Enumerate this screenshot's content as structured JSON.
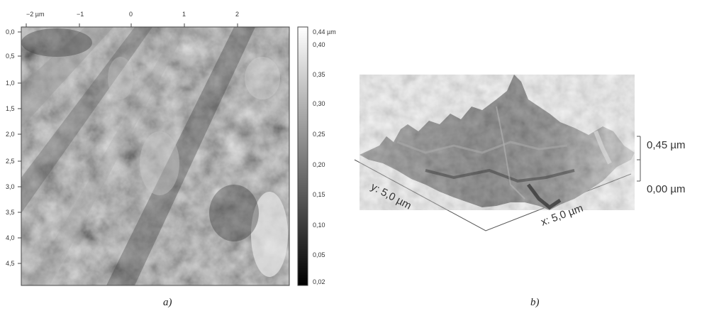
{
  "panel_a": {
    "caption": "a)",
    "x_ticks": [
      "−2 µm",
      "−1",
      "0",
      "1",
      "2"
    ],
    "y_ticks": [
      "0,0",
      "0,5",
      "1,0",
      "1,5",
      "2,0",
      "2,5",
      "3,0",
      "3,5",
      "4,0",
      "4,5"
    ],
    "colorbar_ticks": [
      "0,44 µm",
      "0,40",
      "0,35",
      "0,30",
      "0,25",
      "0,20",
      "0,15",
      "0,10",
      "0,05",
      "0,02"
    ]
  },
  "panel_b": {
    "caption": "b)",
    "y_axis_label": "y: 5,0 µm",
    "x_axis_label": "x: 5,0 µm",
    "z_top_label": "0,45 µm",
    "z_bottom_label": "0,00 µm"
  },
  "colors": {
    "dark": "#2a2a2a",
    "light": "#d8d8d8",
    "line": "#555555"
  }
}
